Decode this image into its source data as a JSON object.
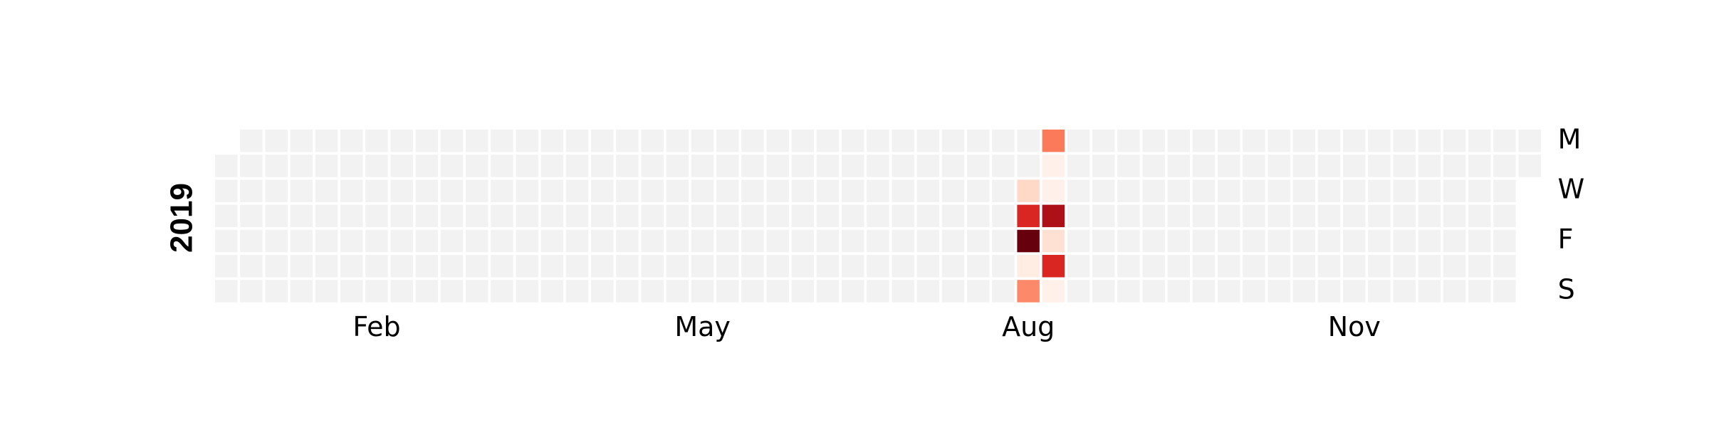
{
  "chart_data": {
    "type": "heatmap",
    "year": "2019",
    "month_labels": [
      "Feb",
      "May",
      "Aug",
      "Nov"
    ],
    "weekday_labels": [
      "M",
      "W",
      "F",
      "S"
    ],
    "empty_color": "#f2f2f2",
    "colormap": "Reds",
    "color_scale": [
      "#fff5f0",
      "#fee0d2",
      "#fcbba1",
      "#fc9272",
      "#fb6a4a",
      "#ef3b2c",
      "#cb181d",
      "#a50f15",
      "#67000d"
    ],
    "cells": [
      {
        "date": "2019-08-14",
        "level": 0.15
      },
      {
        "date": "2019-08-15",
        "level": 0.7
      },
      {
        "date": "2019-08-16",
        "level": 1.0
      },
      {
        "date": "2019-08-17",
        "level": 0.05
      },
      {
        "date": "2019-08-18",
        "level": 0.4
      },
      {
        "date": "2019-08-19",
        "level": 0.45
      },
      {
        "date": "2019-08-20",
        "level": 0.03
      },
      {
        "date": "2019-08-21",
        "level": 0.03
      },
      {
        "date": "2019-08-22",
        "level": 0.85
      },
      {
        "date": "2019-08-23",
        "level": 0.12
      },
      {
        "date": "2019-08-24",
        "level": 0.7
      },
      {
        "date": "2019-08-25",
        "level": 0.03
      }
    ]
  }
}
